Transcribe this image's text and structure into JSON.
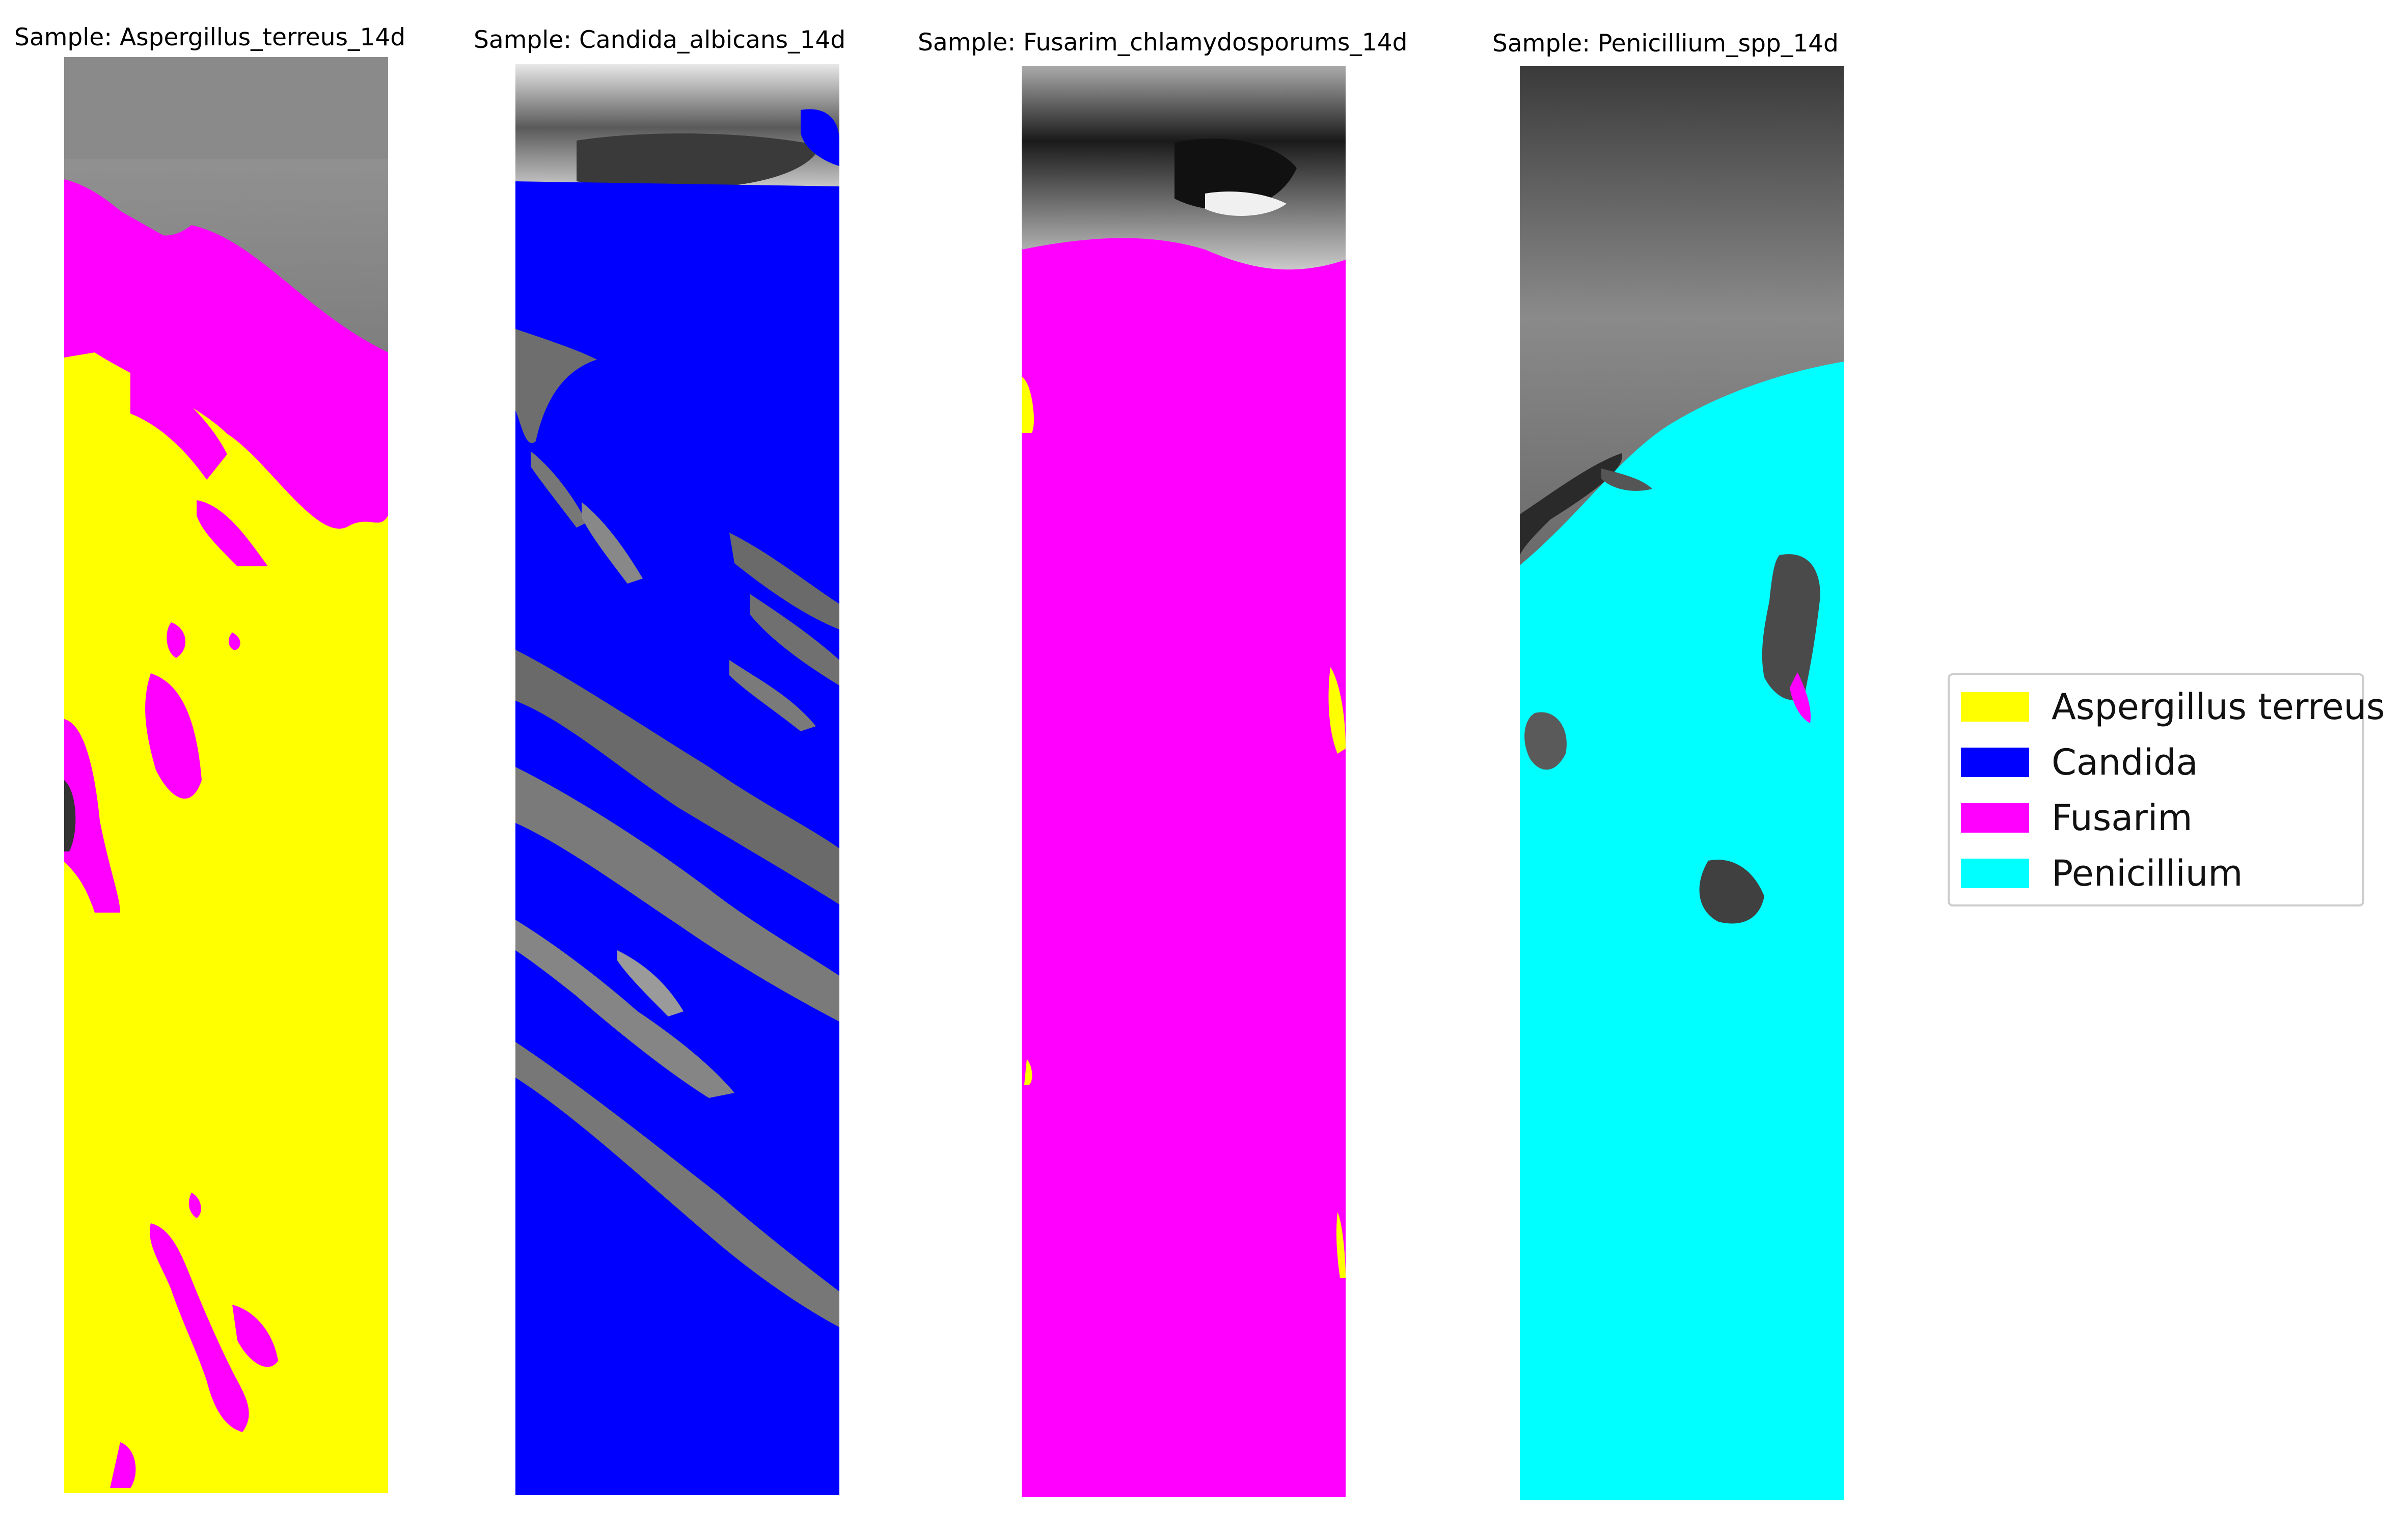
{
  "panels": [
    {
      "title": "Sample: Aspergillus_terreus_14d"
    },
    {
      "title": "Sample: Candida_albicans_14d"
    },
    {
      "title": "Sample: Fusarim_chlamydosporums_14d"
    },
    {
      "title": "Sample: Penicillium_spp_14d"
    }
  ],
  "legend": {
    "placement": "center-right",
    "items": [
      {
        "label": "Aspergillus terreus",
        "color": "#ffff00"
      },
      {
        "label": "Candida",
        "color": "#0000ff"
      },
      {
        "label": "Fusarim",
        "color": "#ff00ff"
      },
      {
        "label": "Penicillium",
        "color": "#00ffff"
      }
    ]
  }
}
